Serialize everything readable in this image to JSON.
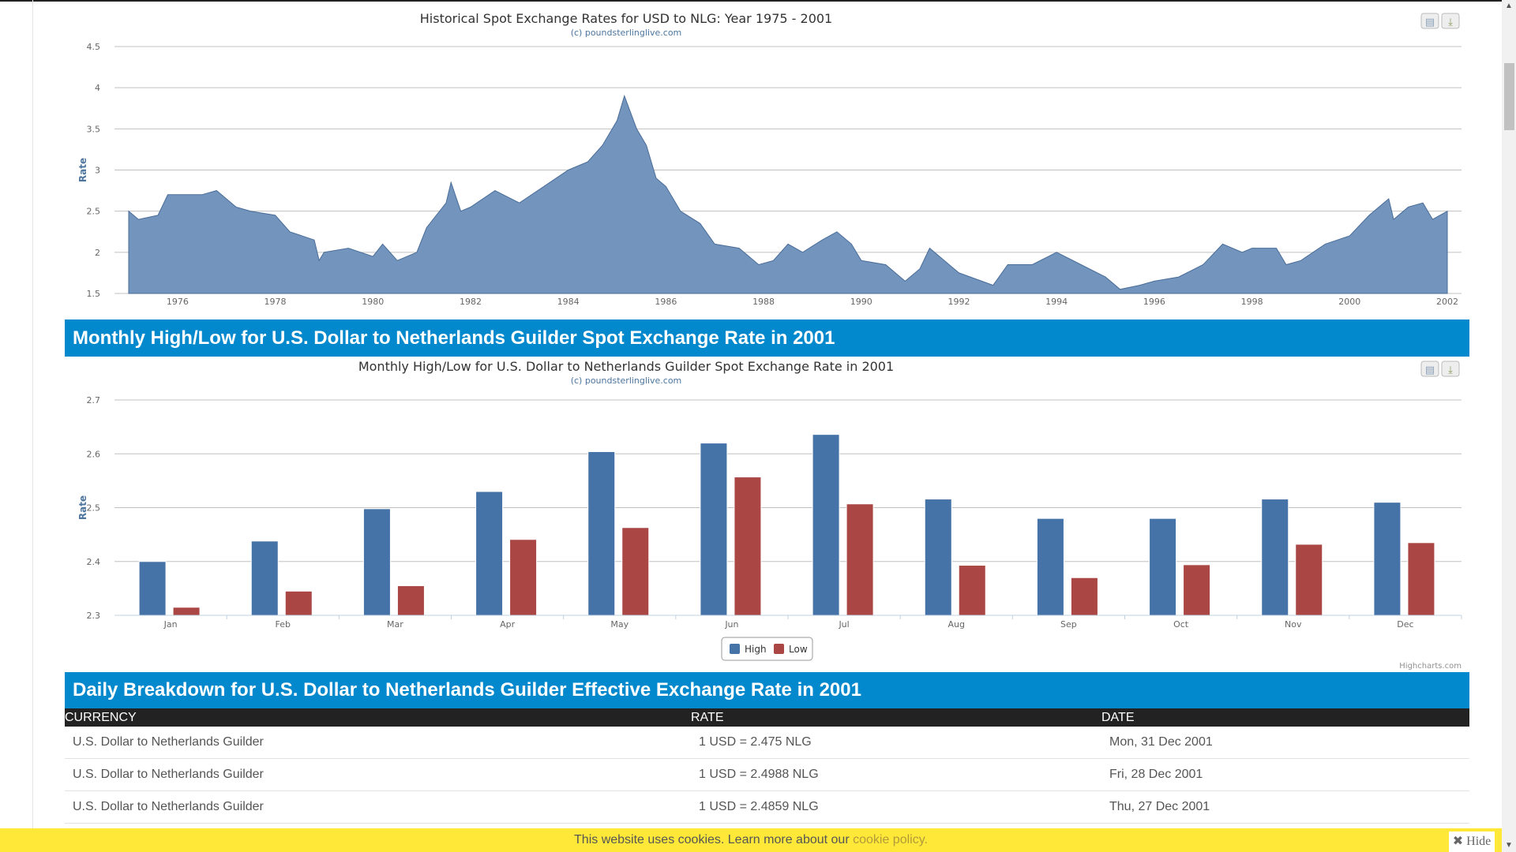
{
  "chart_data": [
    {
      "type": "area",
      "title": "Historical Spot Exchange Rates for USD to NLG: Year 1975 - 2001",
      "subtitle": "(c) poundsterlinglive.com",
      "ylabel": "Rate",
      "ylim": [
        1.5,
        4.5
      ],
      "yticks": [
        "1.5",
        "2",
        "2.5",
        "3",
        "3.5",
        "4",
        "4.5"
      ],
      "xticks": [
        "1976",
        "1978",
        "1980",
        "1982",
        "1984",
        "1986",
        "1988",
        "1990",
        "1992",
        "1994",
        "1996",
        "1998",
        "2000",
        "2002"
      ],
      "xlim": [
        1975,
        2002
      ],
      "grid": true,
      "color": "#4572a7",
      "x": [
        1975.0,
        1975.2,
        1975.6,
        1975.8,
        1976.5,
        1976.8,
        1977.2,
        1977.5,
        1978.0,
        1978.3,
        1978.8,
        1978.9,
        1979.0,
        1979.5,
        1980.0,
        1980.2,
        1980.5,
        1980.9,
        1981.1,
        1981.5,
        1981.6,
        1981.8,
        1982.0,
        1982.5,
        1983.0,
        1983.5,
        1984.0,
        1984.4,
        1984.7,
        1985.0,
        1985.15,
        1985.4,
        1985.6,
        1985.8,
        1986.0,
        1986.3,
        1986.7,
        1987.0,
        1987.5,
        1987.9,
        1988.2,
        1988.5,
        1988.8,
        1989.2,
        1989.5,
        1989.8,
        1990.0,
        1990.5,
        1990.9,
        1991.2,
        1991.4,
        1991.8,
        1992.0,
        1992.7,
        1993.0,
        1993.5,
        1994.0,
        1994.5,
        1995.0,
        1995.3,
        1995.7,
        1996.0,
        1996.5,
        1997.0,
        1997.4,
        1997.8,
        1998.0,
        1998.5,
        1998.7,
        1999.0,
        1999.5,
        2000.0,
        2000.4,
        2000.8,
        2000.9,
        2001.2,
        2001.5,
        2001.7,
        2002.0
      ],
      "y": [
        2.5,
        2.4,
        2.45,
        2.7,
        2.7,
        2.75,
        2.55,
        2.5,
        2.45,
        2.25,
        2.15,
        1.9,
        2.0,
        2.05,
        1.95,
        2.1,
        1.9,
        2.0,
        2.3,
        2.6,
        2.85,
        2.5,
        2.55,
        2.75,
        2.6,
        2.8,
        3.0,
        3.1,
        3.3,
        3.6,
        3.9,
        3.5,
        3.3,
        2.9,
        2.8,
        2.5,
        2.35,
        2.1,
        2.05,
        1.85,
        1.9,
        2.1,
        2.0,
        2.15,
        2.25,
        2.1,
        1.9,
        1.85,
        1.65,
        1.8,
        2.05,
        1.85,
        1.75,
        1.6,
        1.85,
        1.85,
        2.0,
        1.85,
        1.7,
        1.55,
        1.6,
        1.65,
        1.7,
        1.85,
        2.1,
        2.0,
        2.05,
        2.05,
        1.85,
        1.9,
        2.1,
        2.2,
        2.45,
        2.65,
        2.4,
        2.55,
        2.6,
        2.4,
        2.5
      ]
    },
    {
      "type": "bar",
      "title": "Monthly High/Low for U.S. Dollar to Netherlands Guilder Spot Exchange Rate in 2001",
      "subtitle": "(c) poundsterlinglive.com",
      "ylabel": "Rate",
      "ylim": [
        2.3,
        2.7
      ],
      "yticks": [
        "2.3",
        "2.4",
        "2.5",
        "2.6",
        "2.7"
      ],
      "grid": true,
      "legend": "bottom-center",
      "credits": "Highcharts.com",
      "categories": [
        "Jan",
        "Feb",
        "Mar",
        "Apr",
        "May",
        "Jun",
        "Jul",
        "Aug",
        "Sep",
        "Oct",
        "Nov",
        "Dec"
      ],
      "series": [
        {
          "name": "High",
          "color": "#4572a7",
          "values": [
            2.4,
            2.438,
            2.498,
            2.53,
            2.604,
            2.62,
            2.636,
            2.516,
            2.48,
            2.48,
            2.516,
            2.51
          ]
        },
        {
          "name": "Low",
          "color": "#aa4643",
          "values": [
            2.315,
            2.345,
            2.355,
            2.441,
            2.463,
            2.557,
            2.507,
            2.393,
            2.37,
            2.394,
            2.432,
            2.435
          ]
        }
      ]
    }
  ],
  "sections": {
    "monthly_heading": "Monthly High/Low for U.S. Dollar to Netherlands Guilder Spot Exchange Rate in 2001",
    "daily_heading": "Daily Breakdown for U.S. Dollar to Netherlands Guilder Effective Exchange Rate in 2001"
  },
  "table": {
    "headers": [
      "CURRENCY",
      "RATE",
      "DATE"
    ],
    "rows": [
      [
        "U.S. Dollar to Netherlands Guilder",
        "1 USD = 2.475 NLG",
        "Mon, 31 Dec 2001"
      ],
      [
        "U.S. Dollar to Netherlands Guilder",
        "1 USD = 2.4988 NLG",
        "Fri, 28 Dec 2001"
      ],
      [
        "U.S. Dollar to Netherlands Guilder",
        "1 USD = 2.4859 NLG",
        "Thu, 27 Dec 2001"
      ]
    ]
  },
  "cookie": {
    "text": "This website uses cookies. Learn more about our ",
    "link": "cookie policy.",
    "hide": "Hide",
    "hide_icon": "close-icon"
  },
  "icons": {
    "print": "print-icon",
    "download": "download-icon"
  }
}
